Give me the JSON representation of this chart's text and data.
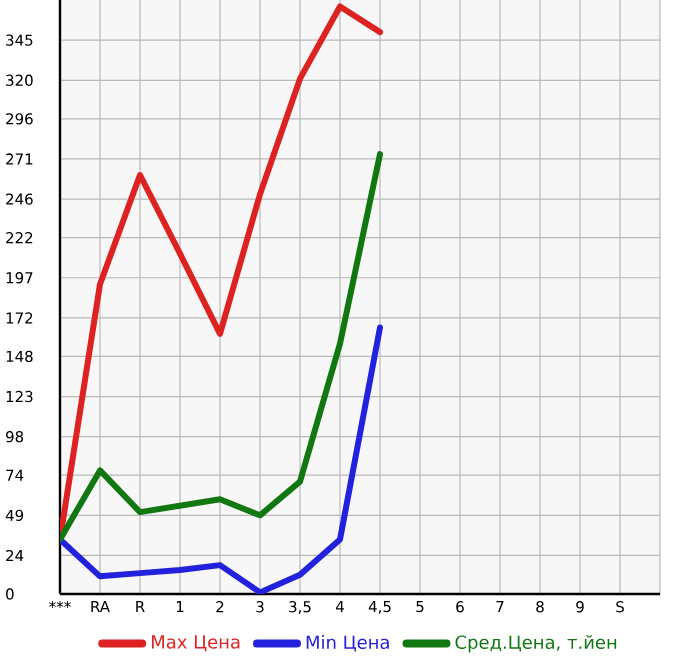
{
  "chart_data": {
    "type": "line",
    "categories": [
      "***",
      "RA",
      "R",
      "1",
      "2",
      "3",
      "3,5",
      "4",
      "4,5",
      "5",
      "6",
      "7",
      "8",
      "9",
      "S"
    ],
    "series": [
      {
        "name": "Max Цена",
        "color": "#dd2222",
        "values": [
          34,
          193,
          261,
          212,
          162,
          249,
          321,
          366,
          350,
          null,
          null,
          null,
          null,
          null,
          null
        ]
      },
      {
        "name": "Min Цена",
        "color": "#2222dd",
        "values": [
          34,
          11,
          13,
          15,
          18,
          1,
          12,
          34,
          166,
          null,
          null,
          null,
          null,
          null,
          null
        ]
      },
      {
        "name": "Сред.Цена, т.йен",
        "color": "#117711",
        "values": [
          34,
          77,
          51,
          55,
          59,
          49,
          70,
          156,
          274,
          null,
          null,
          null,
          null,
          null,
          null
        ]
      }
    ],
    "ylim": [
      0,
      370
    ],
    "yticks": [
      0,
      24,
      49,
      74,
      98,
      123,
      148,
      172,
      197,
      222,
      246,
      271,
      296,
      320,
      345
    ],
    "grid": true,
    "legend": "bottom"
  }
}
